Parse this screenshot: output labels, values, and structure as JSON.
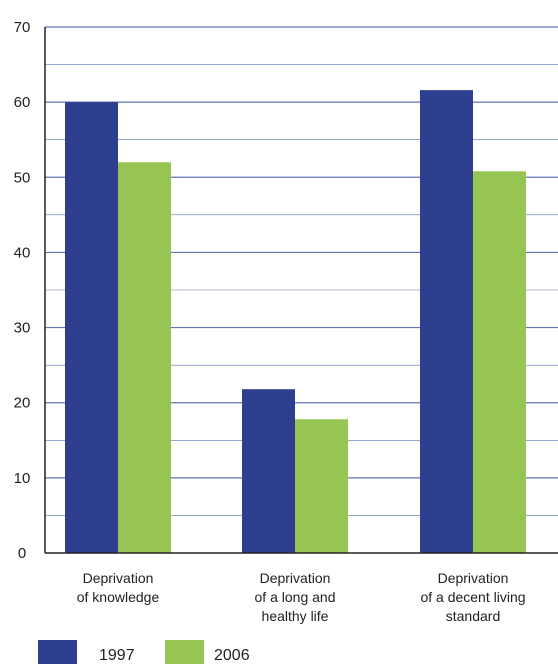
{
  "colors": {
    "s1997": "#2f3f8f",
    "s2006": "#97c553",
    "grid": "#5f74b6"
  },
  "chart_data": {
    "type": "bar",
    "title": "",
    "xlabel": "",
    "ylabel": "",
    "ylim": [
      0,
      70
    ],
    "yticks": [
      0,
      10,
      20,
      30,
      40,
      50,
      60,
      70
    ],
    "grid": true,
    "legend_position": "bottom-left",
    "categories": [
      [
        "Deprivation",
        "of knowledge"
      ],
      [
        "Deprivation",
        "of a long and",
        "healthy life"
      ],
      [
        "Deprivation",
        "of a decent living",
        "standard"
      ]
    ],
    "series": [
      {
        "name": "1997",
        "values": [
          60,
          21.8,
          61.6
        ]
      },
      {
        "name": "2006",
        "values": [
          52,
          17.8,
          50.8
        ]
      }
    ]
  }
}
